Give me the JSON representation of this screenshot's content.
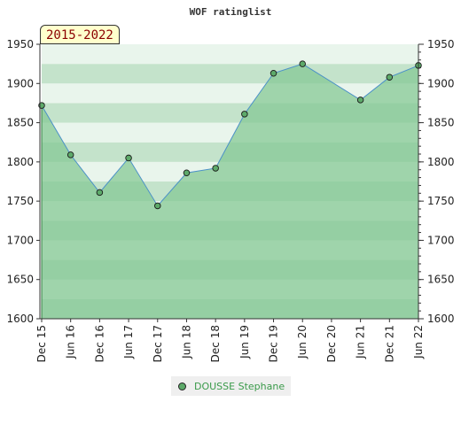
{
  "chart_data": {
    "type": "area",
    "title": "WOF ratinglist",
    "period_label": "2015-2022",
    "categories": [
      "Dec 15",
      "Jun 16",
      "Dec 16",
      "Jun 17",
      "Dec 17",
      "Jun 18",
      "Dec 18",
      "Jun 19",
      "Dec 19",
      "Jun 20",
      "Dec 20",
      "Jun 21",
      "Dec 21",
      "Jun 22"
    ],
    "series": [
      {
        "name": "DOUSSE Stephane",
        "x": [
          "Dec 15",
          "Jun 16",
          "Dec 16",
          "Jun 17",
          "Dec 17",
          "Jun 18",
          "Dec 18",
          "Jun 19",
          "Dec 19",
          "Jun 20",
          "Jun 21",
          "Dec 21",
          "Jun 22"
        ],
        "values": [
          1872,
          1809,
          1761,
          1805,
          1744,
          1786,
          1792,
          1861,
          1913,
          1925,
          1879,
          1908,
          1923
        ],
        "marker": [
          true,
          true,
          true,
          true,
          true,
          true,
          true,
          true,
          true,
          true,
          true,
          true,
          true
        ]
      }
    ],
    "ylim": [
      1600,
      1950
    ],
    "yticks": [
      1600,
      1650,
      1700,
      1750,
      1800,
      1850,
      1900,
      1950
    ],
    "grid": true,
    "legend_position": "bottom",
    "colors": {
      "fill": "#86c895",
      "line": "#4a90c8",
      "marker": "#5daa6a",
      "band_light": "#e9f5ec",
      "band_dark": "#c4e3cb",
      "legend_text": "#3a9a4a"
    }
  }
}
